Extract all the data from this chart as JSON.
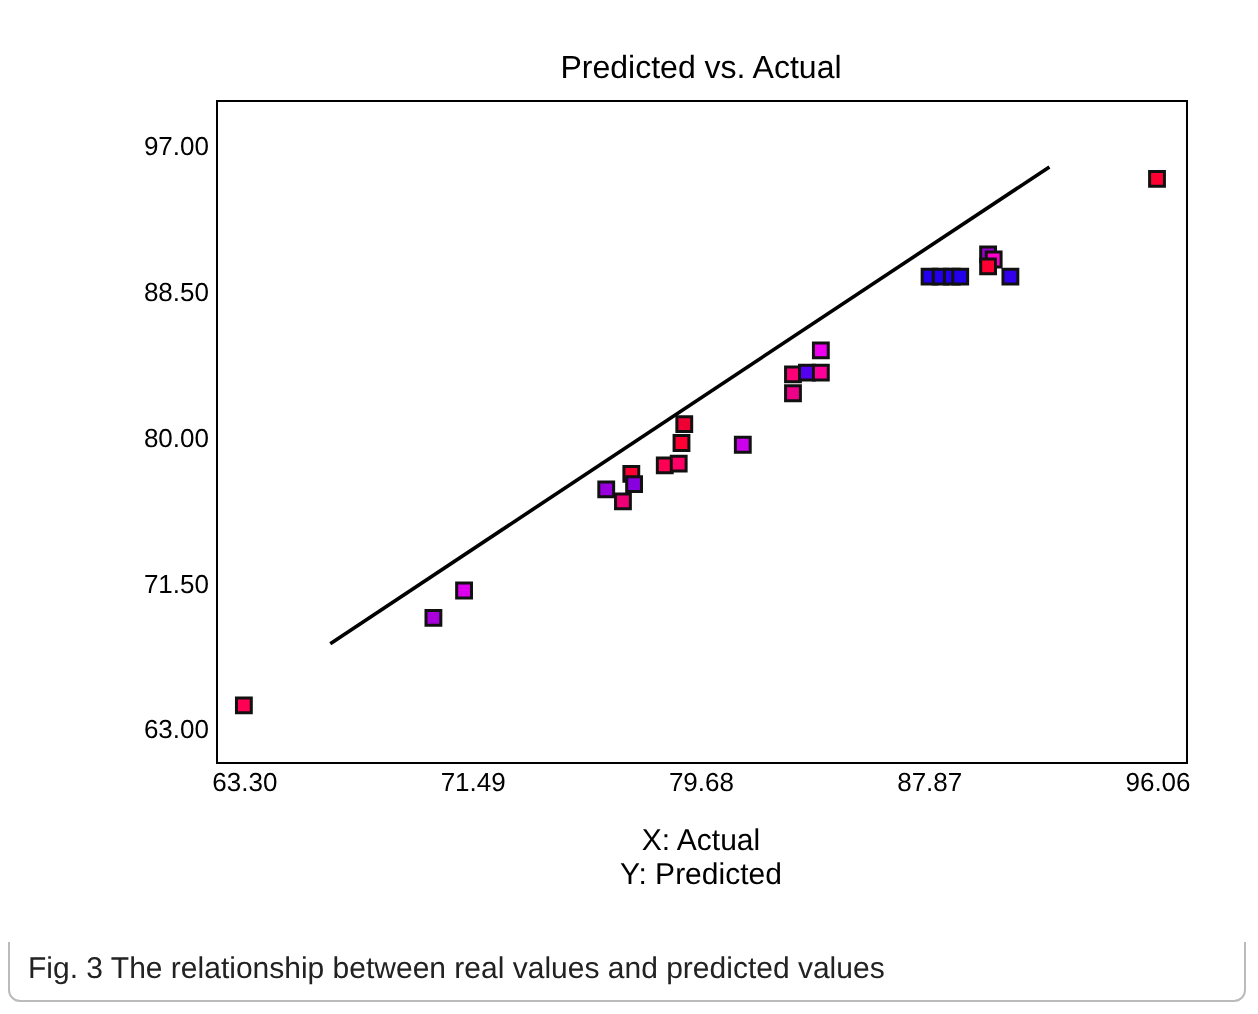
{
  "chart_data": {
    "type": "scatter",
    "title": "Predicted vs. Actual",
    "xlabel": "X: Actual\nY: Predicted",
    "annotations": [
      "Fig. 3 The relationship between real values and predicted values"
    ],
    "xlim": [
      62.3,
      97.1
    ],
    "ylim": [
      61.1,
      99.7
    ],
    "xticks": [
      {
        "value": 63.3,
        "label": "63.30"
      },
      {
        "value": 71.49,
        "label": "71.49"
      },
      {
        "value": 79.68,
        "label": "79.68"
      },
      {
        "value": 87.87,
        "label": "87.87"
      },
      {
        "value": 96.06,
        "label": "96.06"
      }
    ],
    "yticks": [
      {
        "value": 63,
        "label": "63.00"
      },
      {
        "value": 71.5,
        "label": "71.50"
      },
      {
        "value": 80,
        "label": "80.00"
      },
      {
        "value": 88.5,
        "label": "88.50"
      },
      {
        "value": 97,
        "label": "97.00"
      }
    ],
    "grid": false,
    "series": [
      {
        "marker": "square",
        "x": [
          63.3,
          70.1,
          71.2,
          76.3,
          76.9,
          77.2,
          77.3,
          78.4,
          78.9,
          79.0,
          79.1,
          81.2,
          83.0,
          83.0,
          83.5,
          84.0,
          84.0,
          87.9,
          88.3,
          88.7,
          89.0,
          90.8,
          90.0,
          90.2,
          90.0,
          96.06
        ],
        "values": [
          64.4,
          69.5,
          71.1,
          77.0,
          76.3,
          77.9,
          77.3,
          78.4,
          78.5,
          79.7,
          80.8,
          79.6,
          82.6,
          83.7,
          83.8,
          83.8,
          85.1,
          89.4,
          89.4,
          89.4,
          89.4,
          89.4,
          90.7,
          90.4,
          90.0,
          95.1
        ],
        "colors": [
          "#ff0055",
          "#aa00dd",
          "#dd00ee",
          "#9900dd",
          "#ee0077",
          "#ff0033",
          "#8800dd",
          "#ff0055",
          "#ff0066",
          "#ff0033",
          "#ee0033",
          "#cc00ee",
          "#ee0088",
          "#ff0077",
          "#5500ee",
          "#ff0099",
          "#ee00ee",
          "#2200ee",
          "#2200ee",
          "#2200ee",
          "#2200ee",
          "#3300ee",
          "#9900cc",
          "#ff00cc",
          "#ff0033",
          "#ff0033"
        ]
      },
      {
        "type": "line",
        "color": "#000000",
        "x": [
          66.4,
          92.2
        ],
        "values": [
          68.0,
          95.8
        ]
      }
    ]
  }
}
